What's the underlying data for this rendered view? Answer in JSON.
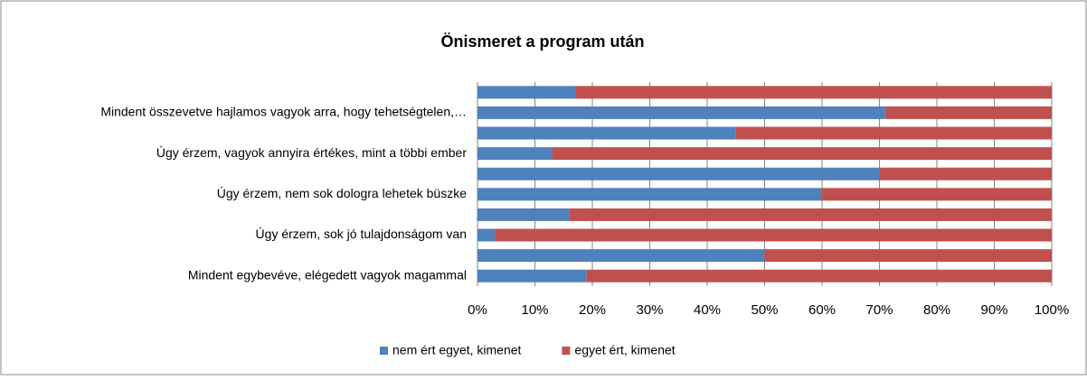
{
  "chart_data": {
    "type": "bar",
    "orientation": "horizontal",
    "stacked": true,
    "title": "Önismeret a program után",
    "categories": [
      null,
      "Mindent összevetve hajlamos vagyok arra, hogy tehetségtelen,…",
      null,
      "Úgy érzem, vagyok annyira értékes, mint a többi ember",
      null,
      "Úgy érzem, nem sok dologra lehetek büszke",
      null,
      "Úgy érzem, sok jó tulajdonságom van",
      null,
      "Mindent egybevéve, elégedett vagyok magammal"
    ],
    "series": [
      {
        "name": "nem ért egyet, kimenet",
        "color": "#4f81bd",
        "values": [
          17,
          71,
          45,
          13,
          70,
          60,
          16,
          3,
          50,
          19
        ]
      },
      {
        "name": "egyet ért, kimenet",
        "color": "#c0504d",
        "values": [
          83,
          29,
          55,
          87,
          30,
          40,
          84,
          97,
          50,
          81
        ]
      }
    ],
    "xlim": [
      0,
      100
    ],
    "xticks": [
      {
        "value": 0,
        "label": "0%"
      },
      {
        "value": 10,
        "label": "10%"
      },
      {
        "value": 20,
        "label": "20%"
      },
      {
        "value": 30,
        "label": "30%"
      },
      {
        "value": 40,
        "label": "40%"
      },
      {
        "value": 50,
        "label": "50%"
      },
      {
        "value": 60,
        "label": "60%"
      },
      {
        "value": 70,
        "label": "70%"
      },
      {
        "value": 80,
        "label": "80%"
      },
      {
        "value": 90,
        "label": "90%"
      },
      {
        "value": 100,
        "label": "100%"
      }
    ],
    "grid": true,
    "legend": "bottom"
  }
}
